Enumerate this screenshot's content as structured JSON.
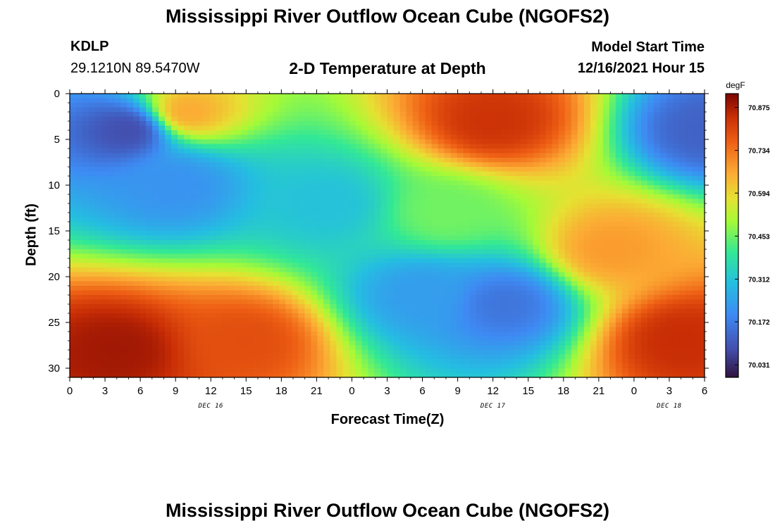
{
  "header": {
    "title": "Mississippi River Outflow Ocean Cube (NGOFS2)",
    "station_id": "KDLP",
    "coordinates": "29.1210N  89.5470W",
    "subtitle": "2-D Temperature at Depth",
    "model_start_label": "Model Start Time",
    "model_start_value": "12/16/2021 Hour 15"
  },
  "footer": {
    "title": "Mississippi River Outflow Ocean Cube (NGOFS2)"
  },
  "chart_data": {
    "type": "heatmap",
    "title": "2-D Temperature at Depth",
    "xlabel": "Forecast Time(Z)",
    "ylabel": "Depth (ft)",
    "x_ticks": [
      "0",
      "3",
      "6",
      "9",
      "12",
      "15",
      "18",
      "21",
      "0",
      "3",
      "6",
      "9",
      "12",
      "15",
      "18",
      "21",
      "0",
      "3",
      "6"
    ],
    "date_labels": [
      {
        "label": "DEC 16",
        "at_hours": 12
      },
      {
        "label": "DEC 17",
        "at_hours": 36
      },
      {
        "label": "DEC 18",
        "at_hours": 51
      }
    ],
    "xlim_hours": [
      0,
      54
    ],
    "y_ticks": [
      "0",
      "5",
      "10",
      "15",
      "20",
      "25",
      "30"
    ],
    "ylim": [
      31,
      0
    ],
    "colorbar": {
      "unit": "degF",
      "labels": [
        "70.875",
        "70.734",
        "70.594",
        "70.453",
        "70.312",
        "70.172",
        "70.031"
      ],
      "min": 69.99,
      "max": 70.92
    },
    "grid": false
  }
}
